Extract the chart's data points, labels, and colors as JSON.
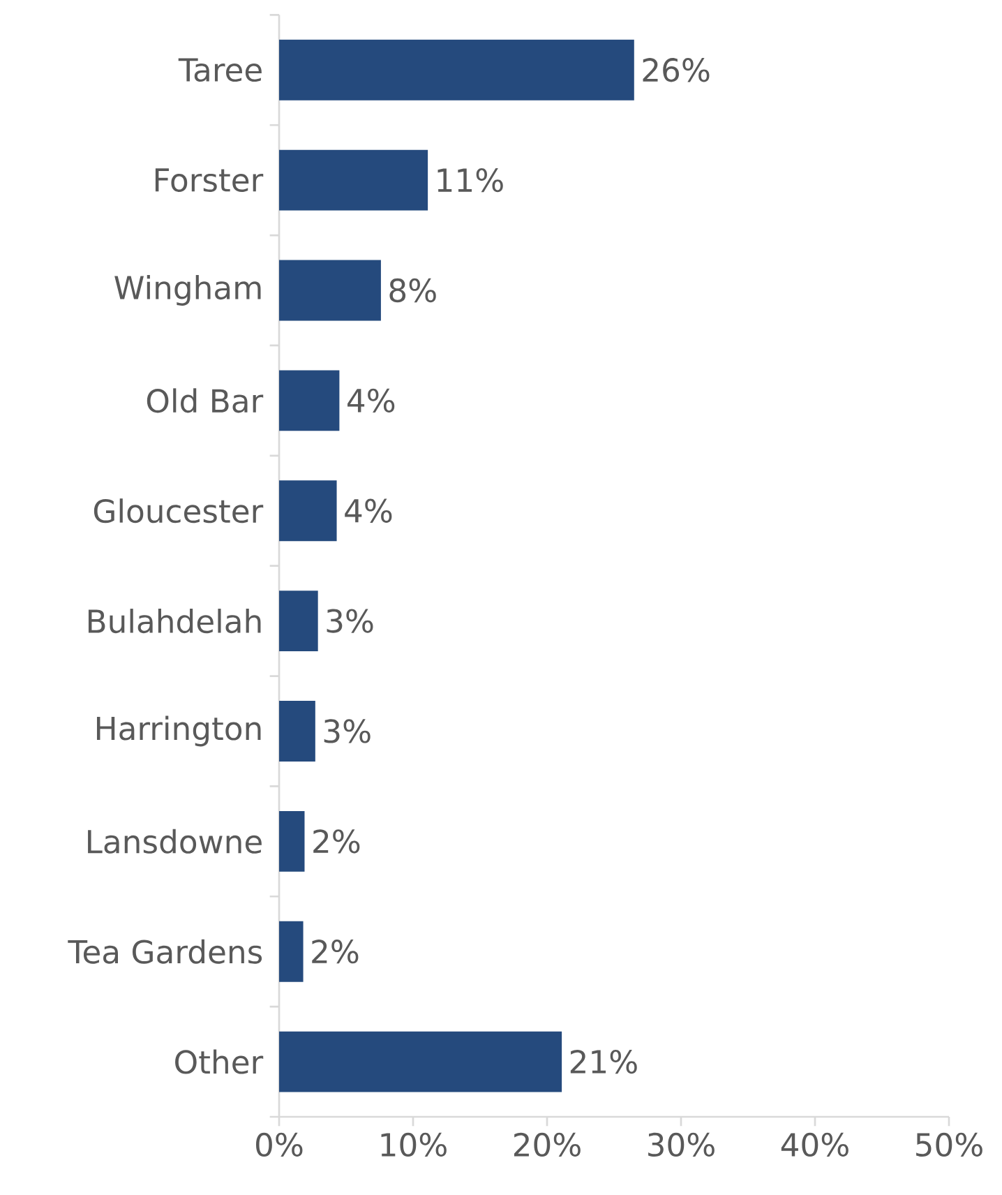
{
  "chart_data": {
    "type": "bar",
    "orientation": "horizontal",
    "categories": [
      "Taree",
      "Forster",
      "Wingham",
      "Old Bar",
      "Gloucester",
      "Bulahdelah",
      "Harrington",
      "Lansdowne",
      "Tea Gardens",
      "Other"
    ],
    "values": [
      26.5,
      11.1,
      7.6,
      4.5,
      4.3,
      2.9,
      2.7,
      1.9,
      1.8,
      21.1
    ],
    "value_labels": [
      "26%",
      "11%",
      "8%",
      "4%",
      "4%",
      "3%",
      "3%",
      "2%",
      "2%",
      "21%"
    ],
    "color": "#254a7d",
    "xlim": [
      0,
      50
    ],
    "xticks": [
      {
        "value": 0,
        "label": "0%"
      },
      {
        "value": 10,
        "label": "10%"
      },
      {
        "value": 20,
        "label": "20%"
      },
      {
        "value": 30,
        "label": "30%"
      },
      {
        "value": 40,
        "label": "40%"
      },
      {
        "value": 50,
        "label": "50%"
      }
    ],
    "grid": false
  }
}
